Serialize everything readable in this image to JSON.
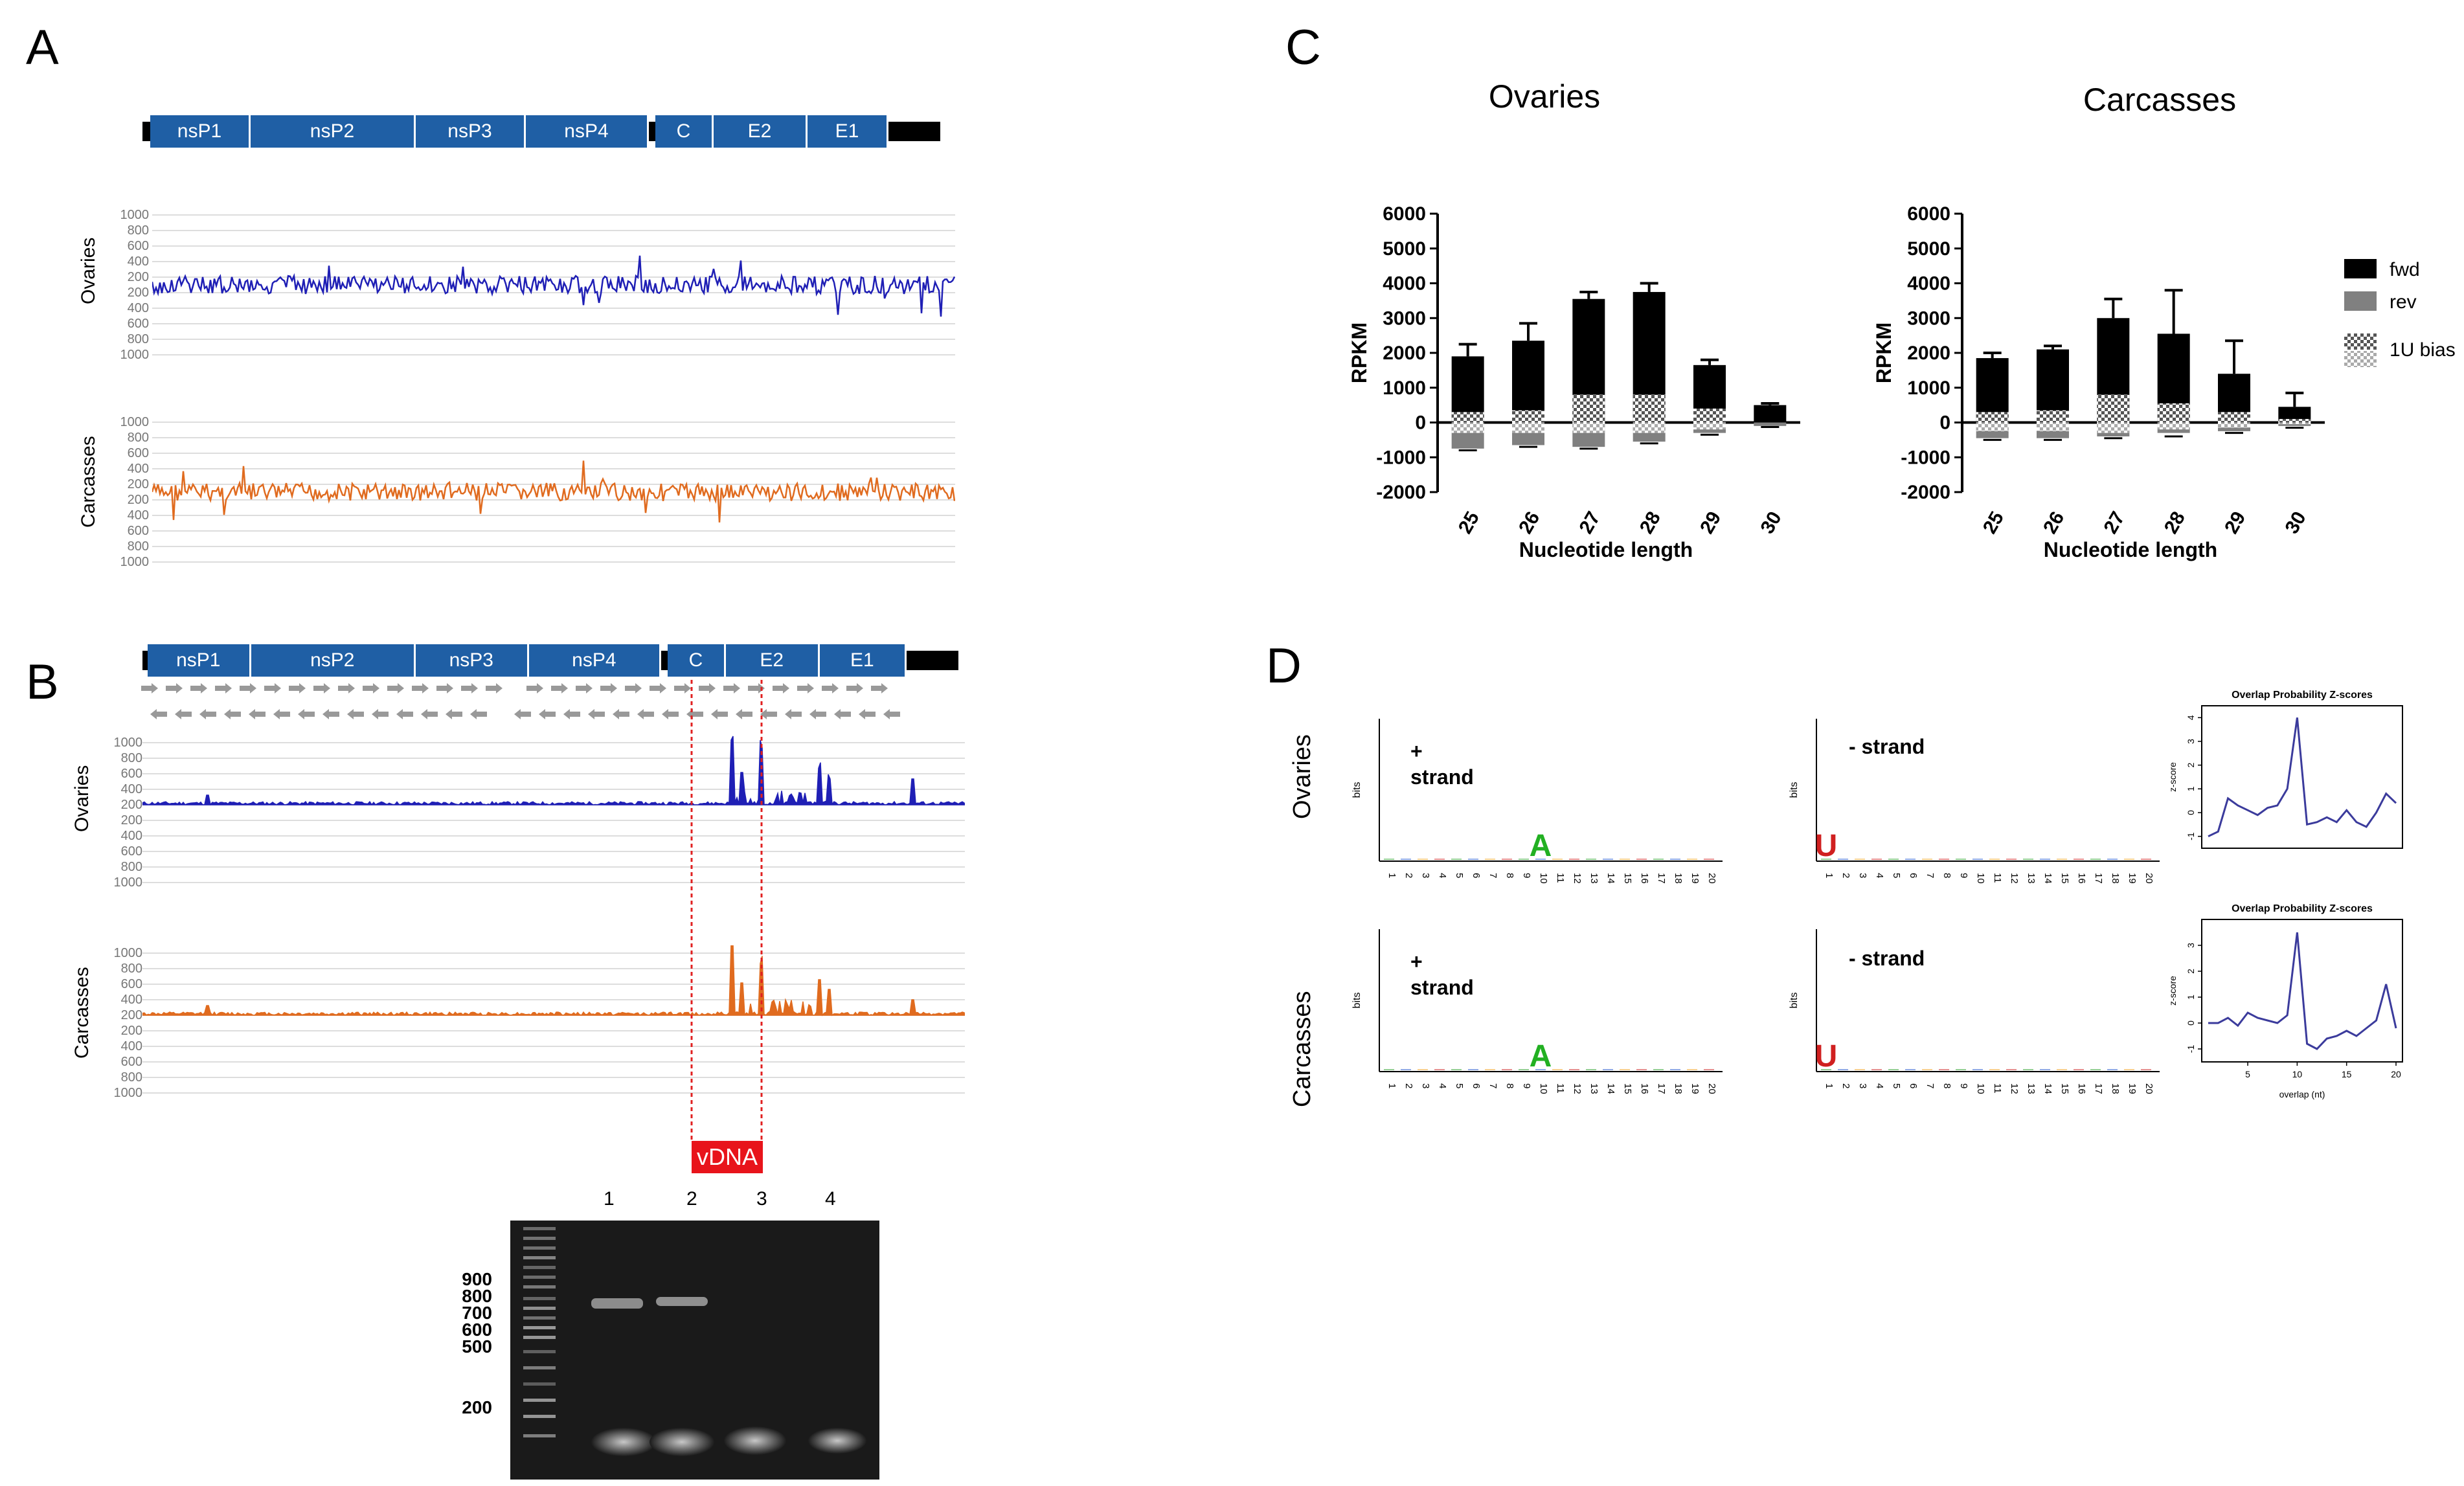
{
  "panels": {
    "a": "A",
    "b": "B",
    "c": "C",
    "d": "D"
  },
  "genome": {
    "segments": [
      "nsP1",
      "nsP2",
      "nsP3",
      "nsP4",
      "C",
      "E2",
      "E1"
    ]
  },
  "coverage": {
    "tick_labels": [
      "1000",
      "800",
      "600",
      "400",
      "200",
      "200",
      "400",
      "600",
      "800",
      "1000"
    ],
    "ovaries_label": "Ovaries",
    "carcasses_label": "Carcasses",
    "ovaries_color": "#1f1fb5",
    "carcasses_color": "#e06b1f"
  },
  "vdna_label": "vDNA",
  "gel": {
    "lanes": [
      "1",
      "2",
      "3",
      "4"
    ],
    "markers": [
      "900",
      "800",
      "700",
      "600",
      "500",
      "200"
    ]
  },
  "chart_data": [
    {
      "type": "bar",
      "title": "Ovaries",
      "categories": [
        "25",
        "26",
        "27",
        "28",
        "29",
        "30"
      ],
      "xlabel": "Nucleotide length",
      "ylabel": "RPKM",
      "ylim": [
        -2000,
        6000
      ],
      "yticks": [
        "6000",
        "5000",
        "4000",
        "3000",
        "2000",
        "1000",
        "0",
        "-1000",
        "-2000"
      ],
      "series": [
        {
          "name": "fwd",
          "values": [
            1900,
            2350,
            3550,
            3750,
            1650,
            500
          ],
          "errors": [
            350,
            500,
            200,
            250,
            150,
            50
          ]
        },
        {
          "name": "rev",
          "values": [
            -750,
            -650,
            -700,
            -550,
            -300,
            -100
          ],
          "errors": [
            50,
            50,
            50,
            50,
            50,
            30
          ]
        },
        {
          "name": "1U bias fwd",
          "values": [
            300,
            350,
            800,
            800,
            400,
            0
          ]
        },
        {
          "name": "1U bias rev",
          "values": [
            -300,
            -300,
            -300,
            -300,
            -200,
            0
          ]
        }
      ]
    },
    {
      "type": "bar",
      "title": "Carcasses",
      "categories": [
        "25",
        "26",
        "27",
        "28",
        "29",
        "30"
      ],
      "xlabel": "Nucleotide length",
      "ylabel": "RPKM",
      "ylim": [
        -2000,
        6000
      ],
      "yticks": [
        "6000",
        "5000",
        "4000",
        "3000",
        "2000",
        "1000",
        "0",
        "-1000",
        "-2000"
      ],
      "legend": [
        "fwd",
        "rev",
        "1U bias"
      ],
      "series": [
        {
          "name": "fwd",
          "values": [
            1850,
            2100,
            3000,
            2550,
            1400,
            450
          ],
          "errors": [
            150,
            100,
            550,
            1250,
            950,
            400
          ]
        },
        {
          "name": "rev",
          "values": [
            -450,
            -450,
            -400,
            -300,
            -250,
            -100
          ],
          "errors": [
            50,
            50,
            50,
            100,
            50,
            50
          ]
        },
        {
          "name": "1U bias fwd",
          "values": [
            300,
            350,
            800,
            550,
            300,
            100
          ]
        },
        {
          "name": "1U bias rev",
          "values": [
            -250,
            -250,
            -300,
            -200,
            -150,
            -50
          ]
        }
      ]
    },
    {
      "type": "line",
      "title": "Overlap Probability Z-scores",
      "x": [
        1,
        2,
        3,
        4,
        5,
        6,
        7,
        8,
        9,
        10,
        11,
        12,
        13,
        14,
        15,
        16,
        17,
        18,
        19,
        20
      ],
      "values": [
        -1,
        -0.8,
        0.6,
        0.3,
        0.1,
        -0.1,
        0.2,
        0.3,
        1.0,
        4.0,
        -0.5,
        -0.4,
        -0.2,
        -0.4,
        0.1,
        -0.4,
        -0.6,
        0.0,
        0.8,
        0.4
      ],
      "yticks": [
        "4",
        "3",
        "2",
        "1",
        "0",
        "-1"
      ],
      "ylabel": "z-score"
    },
    {
      "type": "line",
      "title": "Overlap Probability Z-scores",
      "x": [
        1,
        2,
        3,
        4,
        5,
        6,
        7,
        8,
        9,
        10,
        11,
        12,
        13,
        14,
        15,
        16,
        17,
        18,
        19,
        20
      ],
      "values": [
        0,
        0,
        0.2,
        -0.1,
        0.4,
        0.2,
        0.1,
        0.0,
        0.3,
        3.5,
        -0.8,
        -1.0,
        -0.6,
        -0.5,
        -0.3,
        -0.5,
        -0.2,
        0.1,
        1.5,
        -0.2
      ],
      "yticks": [
        "3",
        "2",
        "1",
        "0",
        "-1"
      ],
      "xticks": [
        "5",
        "10",
        "15",
        "20"
      ],
      "xlabel": "overlap (nt)",
      "ylabel": "z-score"
    }
  ],
  "logo": {
    "row_ovaries": "Ovaries",
    "row_carcasses": "Carcasses",
    "plus_strand": "+\nstrand",
    "minus_strand": "- strand",
    "positions": [
      "1",
      "2",
      "3",
      "4",
      "5",
      "6",
      "7",
      "8",
      "9",
      "10",
      "11",
      "12",
      "13",
      "14",
      "15",
      "16",
      "17",
      "18",
      "19",
      "20"
    ]
  }
}
